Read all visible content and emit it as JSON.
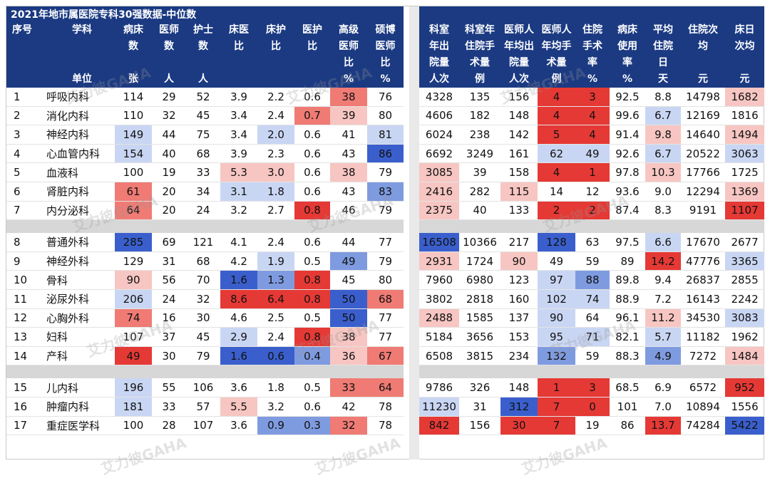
{
  "title": "2021年地市属医院专科30强数据-中位数",
  "watermark": "艾力彼GAHA",
  "left_headers": [
    {
      "lines": [
        "序号",
        "",
        "",
        ""
      ],
      "align": "left"
    },
    {
      "lines": [
        "学科",
        "",
        "",
        "单位"
      ],
      "align": "left"
    },
    {
      "lines": [
        "病床",
        "数",
        "",
        "张"
      ]
    },
    {
      "lines": [
        "医师",
        "数",
        "",
        "人"
      ]
    },
    {
      "lines": [
        "护士",
        "数",
        "",
        "人"
      ]
    },
    {
      "lines": [
        "床医",
        "比",
        "",
        ""
      ]
    },
    {
      "lines": [
        "床护",
        "比",
        "",
        ""
      ]
    },
    {
      "lines": [
        "医护",
        "比",
        "",
        ""
      ]
    },
    {
      "lines": [
        "高级",
        "医师",
        "比",
        "%"
      ]
    },
    {
      "lines": [
        "硕博",
        "医师",
        "比",
        "%"
      ]
    }
  ],
  "right_headers": [
    {
      "lines": [
        "科室",
        "年出",
        "院量",
        "人次"
      ]
    },
    {
      "lines": [
        "科室年",
        "住院手",
        "术量",
        "例"
      ]
    },
    {
      "lines": [
        "医师人",
        "年均出",
        "院量",
        "人次"
      ]
    },
    {
      "lines": [
        "医师人",
        "年均手",
        "术量",
        "例"
      ]
    },
    {
      "lines": [
        "住院",
        "手术",
        "率",
        "%"
      ]
    },
    {
      "lines": [
        "病床",
        "使用",
        "率",
        "%"
      ]
    },
    {
      "lines": [
        "平均",
        "住院",
        "日",
        "天"
      ]
    },
    {
      "lines": [
        "住院次",
        "均",
        "",
        "元"
      ]
    },
    {
      "lines": [
        "床日",
        "次均",
        "",
        "元"
      ]
    }
  ],
  "rows": [
    {
      "id": "1",
      "name": "呼吸内科",
      "left": [
        "114",
        "29",
        "52",
        "3.9",
        "2.2",
        "0.6",
        "38",
        "76"
      ],
      "right": [
        "4328",
        "135",
        "156",
        "4",
        "3",
        "92.5",
        "8.8",
        "14798",
        "1682"
      ]
    },
    {
      "id": "2",
      "name": "消化内科",
      "left": [
        "110",
        "32",
        "45",
        "3.4",
        "2.4",
        "0.7",
        "39",
        "80"
      ],
      "right": [
        "4606",
        "182",
        "148",
        "4",
        "4",
        "99.6",
        "6.7",
        "12169",
        "1816"
      ]
    },
    {
      "id": "3",
      "name": "神经内科",
      "left": [
        "149",
        "44",
        "75",
        "3.4",
        "2.0",
        "0.6",
        "41",
        "81"
      ],
      "right": [
        "6024",
        "238",
        "142",
        "5",
        "4",
        "91.4",
        "9.8",
        "14640",
        "1494"
      ]
    },
    {
      "id": "4",
      "name": "心血管内科",
      "left": [
        "154",
        "40",
        "68",
        "3.9",
        "2.3",
        "0.6",
        "43",
        "86"
      ],
      "right": [
        "6692",
        "3249",
        "161",
        "62",
        "49",
        "92.6",
        "6.7",
        "20522",
        "3063"
      ]
    },
    {
      "id": "5",
      "name": "血液科",
      "left": [
        "100",
        "19",
        "33",
        "5.3",
        "3.0",
        "0.6",
        "38",
        "79"
      ],
      "right": [
        "3085",
        "39",
        "158",
        "4",
        "1",
        "97.8",
        "10.3",
        "17766",
        "1725"
      ]
    },
    {
      "id": "6",
      "name": "肾脏内科",
      "left": [
        "61",
        "20",
        "34",
        "3.1",
        "1.8",
        "0.6",
        "43",
        "83"
      ],
      "right": [
        "2416",
        "282",
        "115",
        "14",
        "12",
        "93.6",
        "9.0",
        "12294",
        "1369"
      ]
    },
    {
      "id": "7",
      "name": "内分泌科",
      "left": [
        "64",
        "20",
        "24",
        "3.2",
        "2.7",
        "0.8",
        "46",
        "79"
      ],
      "right": [
        "2375",
        "40",
        "133",
        "2",
        "2",
        "87.4",
        "8.3",
        "9191",
        "1107"
      ]
    },
    {
      "sep": true
    },
    {
      "id": "8",
      "name": "普通外科",
      "left": [
        "285",
        "69",
        "121",
        "4.1",
        "2.4",
        "0.6",
        "44",
        "77"
      ],
      "right": [
        "16508",
        "10366",
        "217",
        "128",
        "63",
        "97.5",
        "6.6",
        "17670",
        "2677"
      ]
    },
    {
      "id": "9",
      "name": "神经外科",
      "left": [
        "129",
        "31",
        "68",
        "4.2",
        "1.9",
        "0.5",
        "49",
        "79"
      ],
      "right": [
        "2931",
        "1724",
        "90",
        "49",
        "59",
        "89",
        "14.2",
        "47776",
        "3365"
      ]
    },
    {
      "id": "10",
      "name": "骨科",
      "left": [
        "90",
        "56",
        "70",
        "1.6",
        "1.3",
        "0.8",
        "45",
        "80"
      ],
      "right": [
        "7960",
        "6980",
        "123",
        "97",
        "88",
        "89.8",
        "9.4",
        "26837",
        "2855"
      ]
    },
    {
      "id": "11",
      "name": "泌尿外科",
      "left": [
        "206",
        "24",
        "32",
        "8.6",
        "6.4",
        "0.8",
        "50",
        "68"
      ],
      "right": [
        "3802",
        "2818",
        "160",
        "102",
        "74",
        "88.9",
        "7.2",
        "16143",
        "2242"
      ]
    },
    {
      "id": "12",
      "name": "心胸外科",
      "left": [
        "74",
        "16",
        "30",
        "4.6",
        "2.5",
        "0.5",
        "50",
        "77"
      ],
      "right": [
        "2488",
        "1585",
        "137",
        "90",
        "64",
        "96.1",
        "11.2",
        "34530",
        "3083"
      ]
    },
    {
      "id": "13",
      "name": "妇科",
      "left": [
        "107",
        "37",
        "45",
        "2.9",
        "2.4",
        "0.8",
        "38",
        "77"
      ],
      "right": [
        "5184",
        "3656",
        "153",
        "95",
        "71",
        "82.1",
        "5.7",
        "11182",
        "1962"
      ]
    },
    {
      "id": "14",
      "name": "产科",
      "left": [
        "49",
        "30",
        "79",
        "1.6",
        "0.6",
        "0.4",
        "36",
        "67"
      ],
      "right": [
        "6508",
        "3815",
        "234",
        "132",
        "59",
        "88.3",
        "4.9",
        "7272",
        "1484"
      ]
    },
    {
      "sep": true
    },
    {
      "id": "15",
      "name": "儿内科",
      "left": [
        "196",
        "55",
        "106",
        "3.6",
        "1.8",
        "0.5",
        "33",
        "64"
      ],
      "right": [
        "9786",
        "326",
        "148",
        "1",
        "3",
        "68.5",
        "6.9",
        "6572",
        "952"
      ]
    },
    {
      "id": "16",
      "name": "肿瘤内科",
      "left": [
        "181",
        "33",
        "57",
        "5.5",
        "3.2",
        "0.6",
        "42",
        "78"
      ],
      "right": [
        "11230",
        "31",
        "312",
        "7",
        "0",
        "101",
        "7.0",
        "10894",
        "1556"
      ]
    },
    {
      "id": "17",
      "name": "重症医学科",
      "left": [
        "100",
        "28",
        "107",
        "3.6",
        "0.9",
        "0.3",
        "32",
        "78"
      ],
      "right": [
        "842",
        "156",
        "30",
        "7",
        "19",
        "86",
        "13.7",
        "74284",
        "5422"
      ]
    }
  ],
  "colors": {
    "header_bg": "#1b3a82",
    "r3": "#e53935",
    "r2": "#ef7b74",
    "r1": "#f7c6c2",
    "b3": "#3a5fcd",
    "b2": "#7f9be0",
    "b1": "#c9d6f3"
  },
  "left_fill": [
    [
      "",
      "",
      "",
      "",
      "",
      "",
      "r2",
      ""
    ],
    [
      "",
      "",
      "",
      "",
      "",
      "r2",
      "r1",
      ""
    ],
    [
      "b1",
      "",
      "",
      "",
      "b1",
      "",
      "",
      "b1"
    ],
    [
      "b1",
      "",
      "",
      "",
      "",
      "",
      "",
      "b3"
    ],
    [
      "",
      "",
      "",
      "r1",
      "r1",
      "",
      "r1",
      ""
    ],
    [
      "r2",
      "",
      "",
      "b1",
      "b1",
      "",
      "",
      "b2"
    ],
    [
      "r2",
      "",
      "",
      "",
      "",
      "r3",
      "",
      ""
    ],
    [],
    [
      "b3",
      "",
      "",
      "",
      "",
      "",
      "",
      ""
    ],
    [
      "",
      "",
      "",
      "",
      "b1",
      "",
      "b2",
      ""
    ],
    [
      "r1",
      "",
      "",
      "b3",
      "b2",
      "r3",
      "",
      ""
    ],
    [
      "b1",
      "",
      "",
      "r3",
      "r3",
      "r3",
      "b3",
      "r2"
    ],
    [
      "r2",
      "",
      "",
      "",
      "",
      "",
      "b3",
      ""
    ],
    [
      "",
      "",
      "",
      "b1",
      "",
      "r3",
      "r1",
      ""
    ],
    [
      "r3",
      "",
      "",
      "b3",
      "b3",
      "b2",
      "r1",
      "r2"
    ],
    [],
    [
      "b1",
      "",
      "",
      "",
      "",
      "",
      "r2",
      "r2"
    ],
    [
      "b1",
      "",
      "",
      "r1",
      "",
      "",
      "",
      ""
    ],
    [
      "",
      "",
      "",
      "",
      "b2",
      "b2",
      "r2",
      ""
    ]
  ],
  "right_fill": [
    [
      "",
      "",
      "",
      "r3",
      "r3",
      "",
      "",
      "",
      "r1"
    ],
    [
      "",
      "",
      "",
      "r3",
      "r3",
      "",
      "b1",
      "",
      ""
    ],
    [
      "",
      "",
      "",
      "r3",
      "r3",
      "",
      "r1",
      "",
      "r1"
    ],
    [
      "",
      "",
      "",
      "b1",
      "b1",
      "",
      "b1",
      "",
      "b1"
    ],
    [
      "r1",
      "",
      "",
      "r3",
      "r3",
      "",
      "r1",
      "",
      ""
    ],
    [
      "r1",
      "",
      "r1",
      "",
      "",
      "",
      "",
      "",
      "r1"
    ],
    [
      "r1",
      "",
      "",
      "r3",
      "r3",
      "",
      "",
      "",
      "r3"
    ],
    [],
    [
      "b3",
      "",
      "",
      "b3",
      "",
      "",
      "b1",
      "",
      ""
    ],
    [
      "r1",
      "",
      "r1",
      "",
      "",
      "",
      "r3",
      "",
      "b1"
    ],
    [
      "",
      "",
      "",
      "b1",
      "b2",
      "",
      "",
      "",
      ""
    ],
    [
      "",
      "",
      "",
      "b1",
      "b1",
      "",
      "",
      "",
      ""
    ],
    [
      "r1",
      "",
      "",
      "b1",
      "",
      "",
      "r1",
      "",
      "b1"
    ],
    [
      "",
      "",
      "",
      "b1",
      "b1",
      "",
      "b1",
      "",
      ""
    ],
    [
      "",
      "",
      "",
      "b2",
      "",
      "",
      "b2",
      "",
      "r1"
    ],
    [],
    [
      "",
      "",
      "",
      "r3",
      "r3",
      "",
      "",
      "",
      "r3"
    ],
    [
      "b1",
      "",
      "b3",
      "r3",
      "r3",
      "",
      "",
      "",
      ""
    ],
    [
      "r3",
      "",
      "r3",
      "r3",
      "",
      "",
      "r3",
      "",
      "b3"
    ]
  ]
}
